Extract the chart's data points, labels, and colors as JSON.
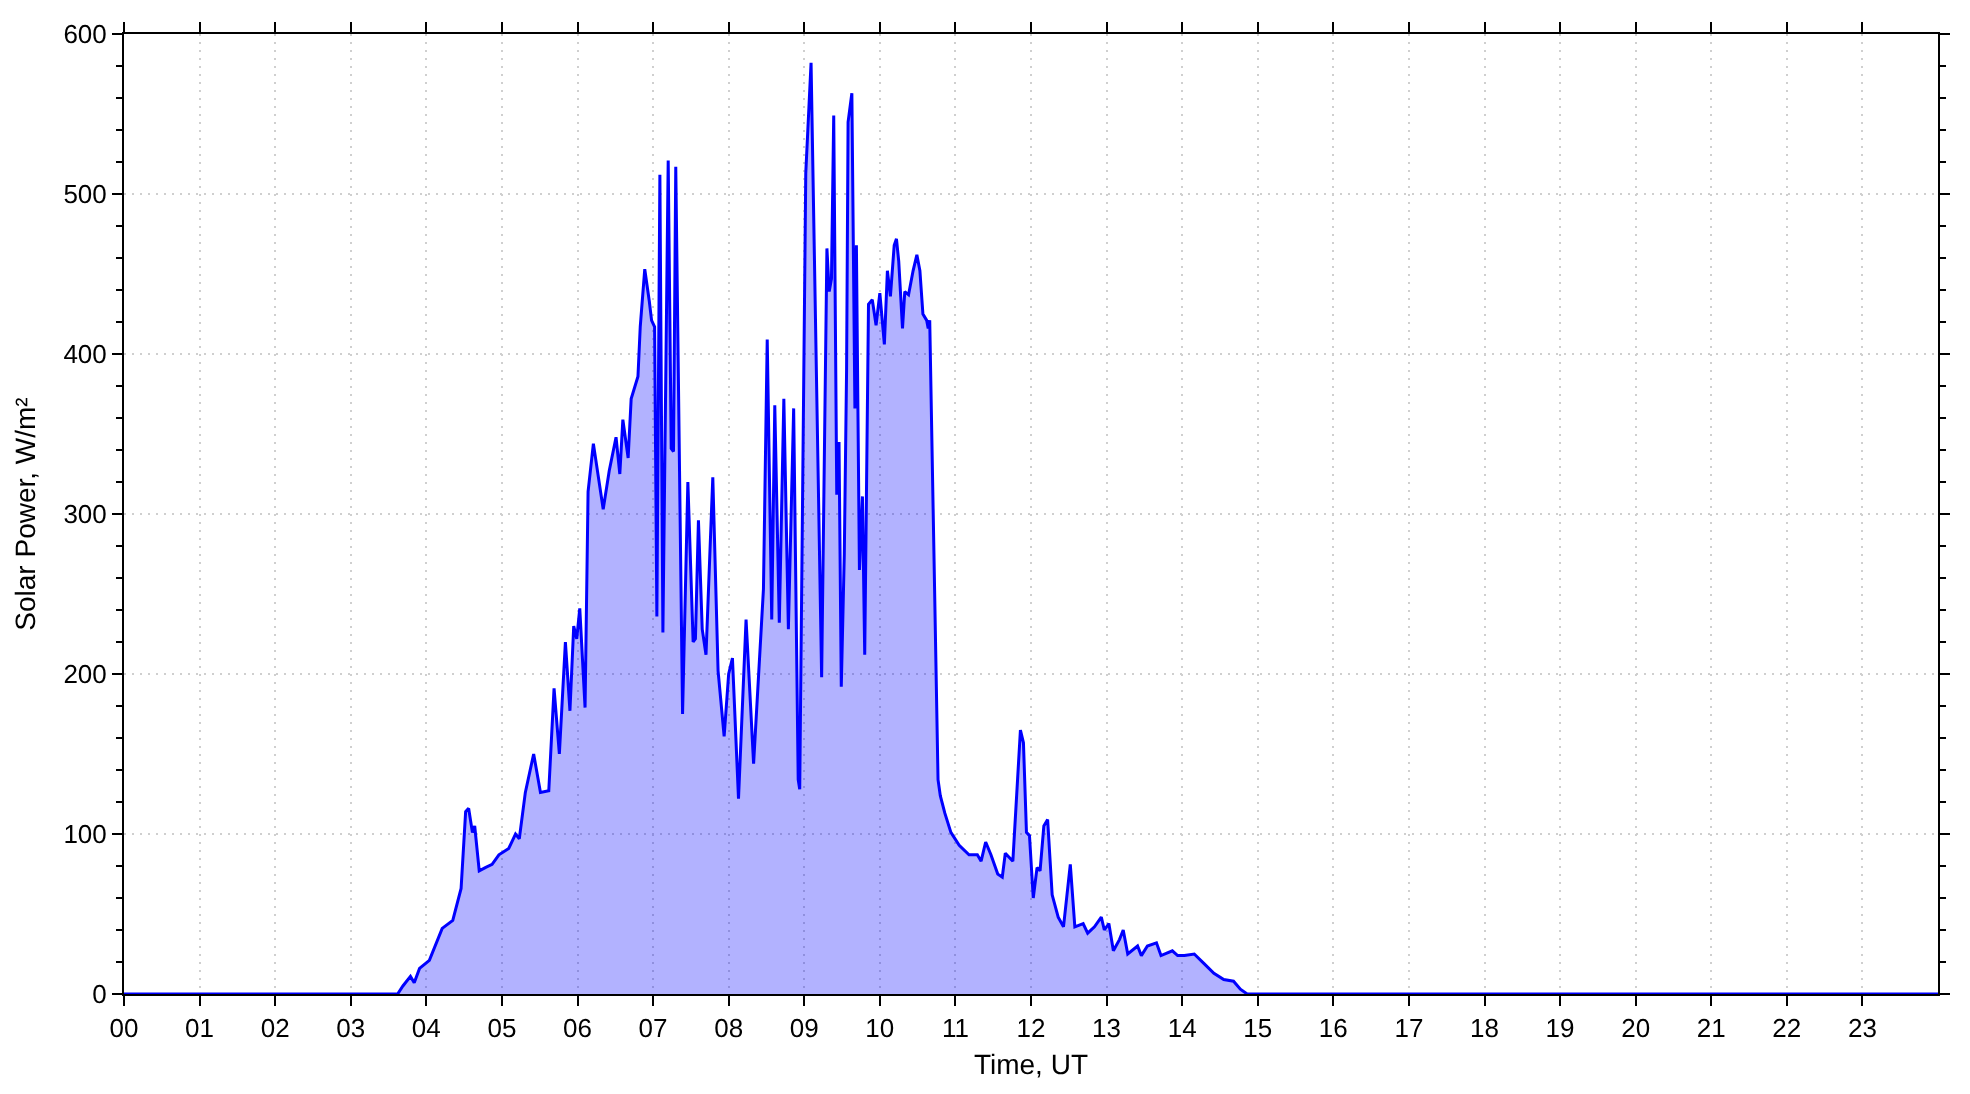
{
  "chart_data": {
    "type": "area",
    "xlabel": "Time, UT",
    "ylabel": "Solar Power, W/m²",
    "x": [
      0,
      3.55,
      3.62,
      3.69,
      3.79,
      3.84,
      3.91,
      4.04,
      4.21,
      4.35,
      4.46,
      4.52,
      4.56,
      4.61,
      4.64,
      4.7,
      4.78,
      4.87,
      4.96,
      5.09,
      5.18,
      5.23,
      5.31,
      5.42,
      5.51,
      5.62,
      5.69,
      5.76,
      5.84,
      5.9,
      5.95,
      5.99,
      6.03,
      6.1,
      6.14,
      6.21,
      6.34,
      6.42,
      6.51,
      6.56,
      6.6,
      6.67,
      6.71,
      6.8,
      6.83,
      6.89,
      6.95,
      6.98,
      7.02,
      7.05,
      7.09,
      7.13,
      7.2,
      7.24,
      7.27,
      7.3,
      7.39,
      7.46,
      7.53,
      7.56,
      7.6,
      7.65,
      7.7,
      7.79,
      7.86,
      7.94,
      8.0,
      8.05,
      8.13,
      8.23,
      8.33,
      8.46,
      8.51,
      8.57,
      8.61,
      8.67,
      8.73,
      8.79,
      8.86,
      8.92,
      8.94,
      9.02,
      9.09,
      9.23,
      9.3,
      9.33,
      9.36,
      9.39,
      9.43,
      9.46,
      9.49,
      9.53,
      9.56,
      9.58,
      9.63,
      9.67,
      9.69,
      9.73,
      9.77,
      9.8,
      9.85,
      9.9,
      9.95,
      10.0,
      10.06,
      10.1,
      10.14,
      10.19,
      10.22,
      10.25,
      10.3,
      10.33,
      10.38,
      10.44,
      10.49,
      10.53,
      10.57,
      10.62,
      10.64,
      10.66,
      10.77,
      10.8,
      10.86,
      10.94,
      11.05,
      11.18,
      11.29,
      11.34,
      11.4,
      11.47,
      11.56,
      11.62,
      11.66,
      11.76,
      11.86,
      11.9,
      11.94,
      11.98,
      12.03,
      12.08,
      12.12,
      12.17,
      12.22,
      12.28,
      12.36,
      12.43,
      12.52,
      12.58,
      12.69,
      12.75,
      12.84,
      12.93,
      12.97,
      13.03,
      13.09,
      13.17,
      13.22,
      13.28,
      13.41,
      13.46,
      13.54,
      13.66,
      13.72,
      13.87,
      13.94,
      14.03,
      14.16,
      14.29,
      14.42,
      14.55,
      14.68,
      14.77,
      14.86,
      24
    ],
    "series": [
      {
        "color": "#0000ff",
        "values": [
          0,
          0,
          0,
          5,
          11,
          7,
          16,
          21,
          41,
          46,
          66,
          114,
          116,
          101,
          105,
          77,
          79,
          81,
          87,
          91,
          100,
          97,
          126,
          150,
          126,
          127,
          191,
          150,
          220,
          177,
          230,
          222,
          241,
          179,
          314,
          344,
          303,
          327,
          348,
          325,
          359,
          335,
          372,
          386,
          417,
          453,
          433,
          421,
          417,
          236,
          512,
          226,
          521,
          341,
          339,
          517,
          175,
          320,
          220,
          222,
          296,
          228,
          212,
          323,
          202,
          161,
          200,
          210,
          122,
          234,
          144,
          253,
          409,
          234,
          368,
          232,
          372,
          228,
          366,
          134,
          128,
          513,
          582,
          198,
          466,
          439,
          447,
          549,
          312,
          345,
          192,
          275,
          390,
          545,
          563,
          366,
          468,
          265,
          311,
          212,
          431,
          434,
          418,
          438,
          406,
          452,
          436,
          468,
          472,
          458,
          416,
          439,
          437,
          452,
          462,
          452,
          425,
          421,
          416,
          421,
          134,
          124,
          113,
          101,
          93,
          87,
          87,
          83,
          95,
          87,
          75,
          73,
          88,
          83,
          165,
          157,
          101,
          99,
          60,
          79,
          77,
          105,
          109,
          62,
          48,
          42,
          81,
          42,
          44,
          38,
          42,
          48,
          40,
          44,
          27,
          34,
          40,
          25,
          30,
          24,
          30,
          32,
          24,
          27,
          24,
          24,
          25,
          19,
          13,
          9,
          8,
          3,
          0,
          0
        ]
      }
    ],
    "xlim": [
      0,
      24
    ],
    "xticks": [
      {
        "value": 0,
        "label": "00"
      },
      {
        "value": 1,
        "label": "01"
      },
      {
        "value": 2,
        "label": "02"
      },
      {
        "value": 3,
        "label": "03"
      },
      {
        "value": 4,
        "label": "04"
      },
      {
        "value": 5,
        "label": "05"
      },
      {
        "value": 6,
        "label": "06"
      },
      {
        "value": 7,
        "label": "07"
      },
      {
        "value": 8,
        "label": "08"
      },
      {
        "value": 9,
        "label": "09"
      },
      {
        "value": 10,
        "label": "10"
      },
      {
        "value": 11,
        "label": "11"
      },
      {
        "value": 12,
        "label": "12"
      },
      {
        "value": 13,
        "label": "13"
      },
      {
        "value": 14,
        "label": "14"
      },
      {
        "value": 15,
        "label": "15"
      },
      {
        "value": 16,
        "label": "16"
      },
      {
        "value": 17,
        "label": "17"
      },
      {
        "value": 18,
        "label": "18"
      },
      {
        "value": 19,
        "label": "19"
      },
      {
        "value": 20,
        "label": "20"
      },
      {
        "value": 21,
        "label": "21"
      },
      {
        "value": 22,
        "label": "22"
      },
      {
        "value": 23,
        "label": "23"
      }
    ],
    "ylim": [
      0,
      600
    ],
    "yticks": [
      0,
      {
        "value": 20,
        "label": null
      },
      {
        "value": 40,
        "label": null
      },
      {
        "value": 60,
        "label": null
      },
      {
        "value": 80,
        "label": null
      },
      100,
      {
        "value": 120,
        "label": null
      },
      {
        "value": 140,
        "label": null
      },
      {
        "value": 160,
        "label": null
      },
      {
        "value": 180,
        "label": null
      },
      200,
      {
        "value": 220,
        "label": null
      },
      {
        "value": 240,
        "label": null
      },
      {
        "value": 260,
        "label": null
      },
      {
        "value": 280,
        "label": null
      },
      300,
      {
        "value": 320,
        "label": null
      },
      {
        "value": 340,
        "label": null
      },
      {
        "value": 360,
        "label": null
      },
      {
        "value": 380,
        "label": null
      },
      400,
      {
        "value": 420,
        "label": null
      },
      {
        "value": 440,
        "label": null
      },
      {
        "value": 460,
        "label": null
      },
      {
        "value": 480,
        "label": null
      },
      500,
      {
        "value": 520,
        "label": null
      },
      {
        "value": 540,
        "label": null
      },
      {
        "value": 560,
        "label": null
      },
      {
        "value": 580,
        "label": null
      },
      600
    ],
    "grid": true
  }
}
